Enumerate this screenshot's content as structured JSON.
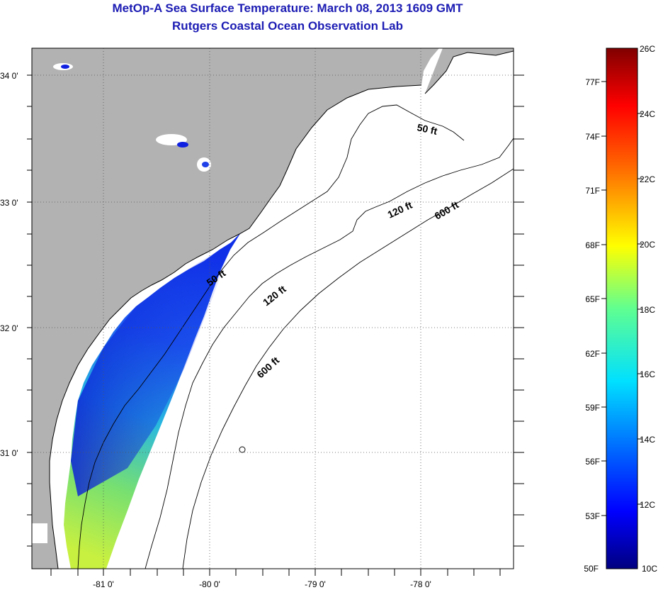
{
  "header": {
    "title": "MetOp-A Sea Surface Temperature:  March 08, 2013 1609 GMT",
    "subtitle": "Rutgers Coastal Ocean Observation Lab"
  },
  "map": {
    "lat_labels": [
      "34 0'",
      "33 0'",
      "32 0'",
      "31 0'"
    ],
    "lon_labels": [
      "-81 0'",
      "-80 0'",
      "-79 0'",
      "-78 0'"
    ],
    "contour_labels": [
      "50 ft",
      "120 ft",
      "600 ft",
      "50 ft",
      "120 ft",
      "600 ft"
    ]
  },
  "colorbar": {
    "celsius_labels": [
      "26C",
      "24C",
      "22C",
      "20C",
      "18C",
      "16C",
      "14C",
      "12C",
      "10C"
    ],
    "fahrenheit_labels": [
      "77F",
      "74F",
      "71F",
      "68F",
      "65F",
      "62F",
      "59F",
      "56F",
      "53F",
      "50F"
    ],
    "range_c": [
      10,
      26
    ],
    "range_f": [
      50,
      78.8
    ]
  },
  "colors": {
    "title": "#1c1cb4",
    "land": "#b2b2b2",
    "water": "#ffffff"
  }
}
